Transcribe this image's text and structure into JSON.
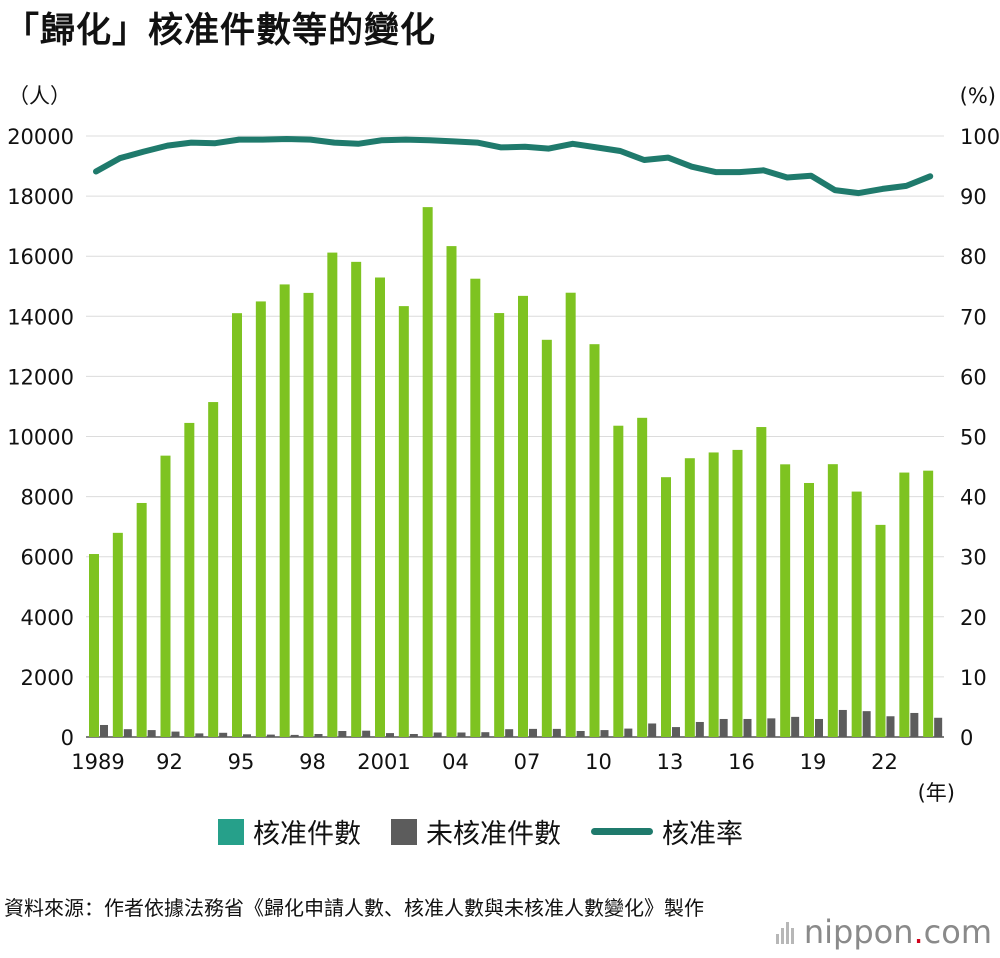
{
  "title": "「歸化」核准件數等的變化",
  "chart_data": {
    "type": "bar+line",
    "title": "「歸化」核准件數等的變化",
    "left_axis_unit": "（人）",
    "right_axis_unit": "(%)",
    "x_unit": "(年)",
    "left_ylim": [
      0,
      20000
    ],
    "left_yticks": [
      "0",
      "2000",
      "4000",
      "6000",
      "8000",
      "10000",
      "12000",
      "14000",
      "16000",
      "18000",
      "20000"
    ],
    "right_ylim": [
      0,
      100
    ],
    "right_yticks": [
      "0",
      "10",
      "20",
      "30",
      "40",
      "50",
      "60",
      "70",
      "80",
      "90",
      "100"
    ],
    "years": [
      1989,
      1990,
      1991,
      1992,
      1993,
      1994,
      1995,
      1996,
      1997,
      1998,
      1999,
      2000,
      2001,
      2002,
      2003,
      2004,
      2005,
      2006,
      2007,
      2008,
      2009,
      2010,
      2011,
      2012,
      2013,
      2014,
      2015,
      2016,
      2017,
      2018,
      2019,
      2020,
      2021,
      2022,
      2023,
      2024
    ],
    "x_tick_labels": [
      "1989",
      "",
      "",
      "92",
      "",
      "",
      "95",
      "",
      "",
      "98",
      "",
      "",
      "2001",
      "",
      "",
      "04",
      "",
      "",
      "07",
      "",
      "",
      "10",
      "",
      "",
      "13",
      "",
      "",
      "16",
      "",
      "",
      "19",
      "",
      "",
      "22",
      "",
      ""
    ],
    "series": [
      {
        "name": "核准件數",
        "type": "bar",
        "color": "#7ec321",
        "values": [
          6089,
          6794,
          7788,
          9363,
          10452,
          11146,
          14104,
          14495,
          15061,
          14779,
          16120,
          15812,
          15291,
          14339,
          17633,
          16336,
          15251,
          14108,
          14680,
          13218,
          14785,
          13072,
          10359,
          10622,
          8646,
          9277,
          9469,
          9554,
          10315,
          9074,
          8453,
          9079,
          8167,
          7059,
          8800,
          8863
        ]
      },
      {
        "name": "未核准件數",
        "type": "bar",
        "color": "#5c5c5c",
        "values": [
          400,
          260,
          230,
          180,
          120,
          140,
          90,
          80,
          70,
          100,
          200,
          210,
          130,
          100,
          150,
          150,
          160,
          260,
          270,
          270,
          200,
          230,
          280,
          450,
          330,
          500,
          600,
          600,
          620,
          670,
          600,
          900,
          860,
          690,
          800,
          640
        ]
      },
      {
        "name": "核准率",
        "type": "line",
        "color": "#1f7a6c",
        "axis": "right",
        "values": [
          94.1,
          96.3,
          97.4,
          98.4,
          98.9,
          98.8,
          99.4,
          99.4,
          99.5,
          99.4,
          98.9,
          98.7,
          99.3,
          99.4,
          99.3,
          99.1,
          98.9,
          98.1,
          98.2,
          97.9,
          98.7,
          98.1,
          97.5,
          96.0,
          96.4,
          94.9,
          94.0,
          94.0,
          94.3,
          93.1,
          93.4,
          91.0,
          90.5,
          91.2,
          91.7,
          93.3
        ]
      }
    ]
  },
  "legend": [
    {
      "label": "核准件數",
      "color": "#26a08a",
      "shape": "box"
    },
    {
      "label": "未核准件數",
      "color": "#5c5c5c",
      "shape": "box"
    },
    {
      "label": "核准率",
      "color": "#1f7a6c",
      "shape": "line"
    }
  ],
  "source_text": "資料來源：作者依據法務省《歸化申請人數、核准人數與未核准人數變化》製作",
  "brand": {
    "name": "nippon",
    "dot": ".",
    "tld": "com"
  }
}
